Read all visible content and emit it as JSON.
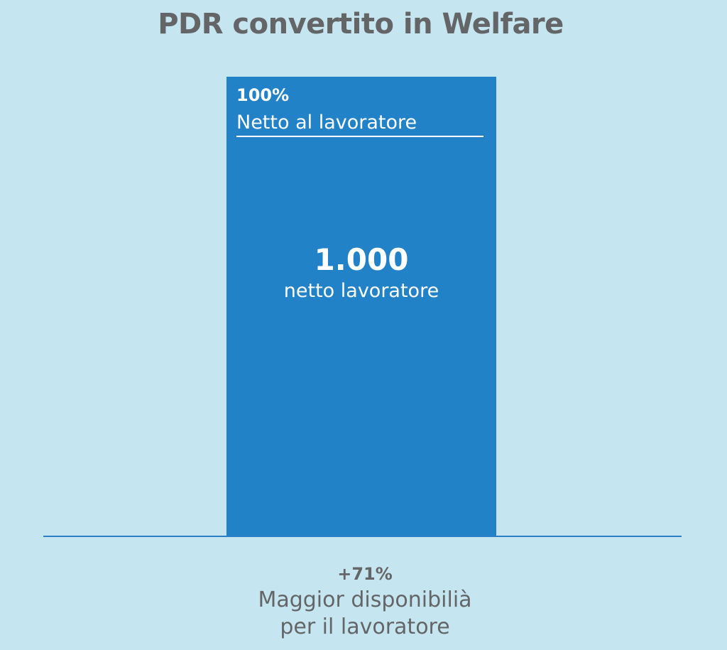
{
  "chart_data": {
    "type": "bar",
    "title": "PDR convertito in Welfare",
    "categories": [
      ""
    ],
    "values": [
      1000
    ],
    "ylim": [
      0,
      1000
    ],
    "colors": {
      "background": "#c5e5f0",
      "bar": "#2282c8",
      "baseline": "#2a7fc6",
      "text_dark": "#646567",
      "text_light": "#ffffff"
    },
    "bar_labels": {
      "percent": "100%",
      "percent_caption": "Netto al lavoratore",
      "value": "1.000",
      "value_caption": "netto lavoratore"
    },
    "annotation": {
      "percent": "+71%",
      "line1": "Maggior disponibilià",
      "line2": "per il lavoratore"
    }
  }
}
